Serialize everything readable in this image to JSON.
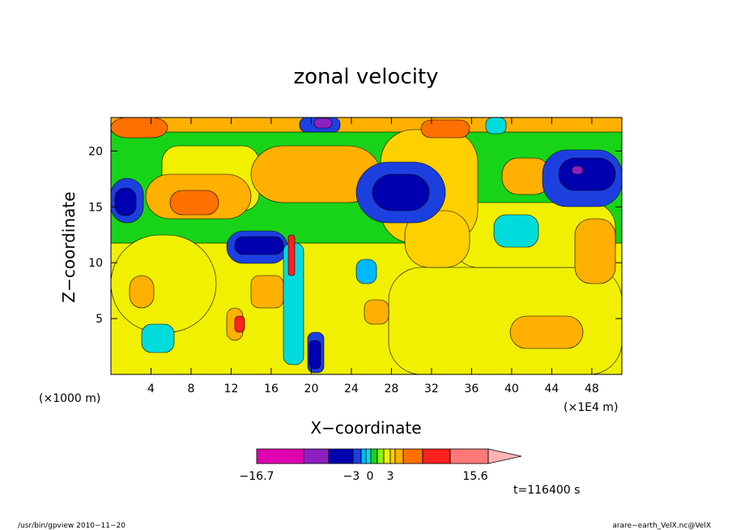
{
  "chart_data": {
    "type": "heatmap",
    "title": "zonal velocity",
    "xlabel": "X−coordinate",
    "ylabel": "Z−coordinate",
    "x_scale_note": "(×1000 m)",
    "x_unit_note": "(×1E4 m)",
    "xlim": [
      0,
      51
    ],
    "ylim": [
      0,
      23
    ],
    "x_ticks": [
      4,
      8,
      12,
      16,
      20,
      24,
      28,
      32,
      36,
      40,
      44,
      48
    ],
    "y_ticks": [
      5,
      10,
      15,
      20
    ],
    "colorbar": {
      "labels": [
        "−16.7",
        "−3",
        "0",
        "3",
        "15.6"
      ],
      "colors": [
        "#e000b0",
        "#8c20c0",
        "#0000b0",
        "#1c40e0",
        "#00b8ff",
        "#00dcdc",
        "#18d418",
        "#90f010",
        "#f0f000",
        "#ffd000",
        "#ffb000",
        "#ff7000",
        "#ff2020",
        "#ff7878",
        "#ffb4b4"
      ]
    },
    "time_label": "t=116400 s"
  },
  "footer": {
    "left": "/usr/bin/gpview   2010−11−20",
    "right": "arare−earth_VelX.nc@VelX"
  }
}
